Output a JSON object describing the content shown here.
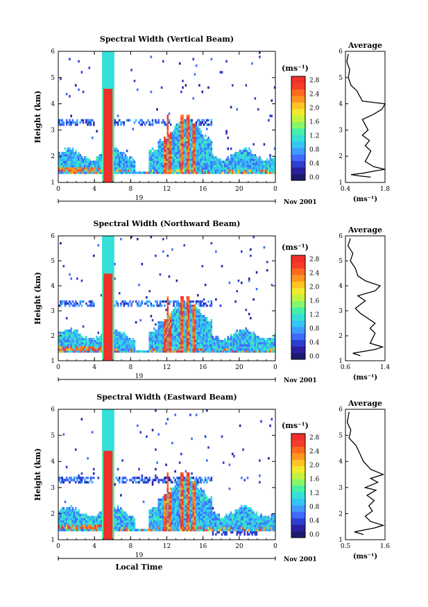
{
  "chart_data": [
    {
      "type": "heatmap",
      "title": "Spectral Width (Vertical Beam)",
      "xlabel": "",
      "ylabel": "Height (km)",
      "x_ticks": [
        "0",
        "4",
        "8",
        "12",
        "16",
        "20",
        "0"
      ],
      "xlim": [
        0,
        24
      ],
      "y_ticks": [
        "1",
        "2",
        "3",
        "4",
        "5",
        "6"
      ],
      "ylim": [
        1,
        6
      ],
      "date_label": "19",
      "date_suffix": "Nov 2001",
      "colorbar": {
        "unit": "(ms⁻¹)",
        "ticks": [
          "0.0",
          "0.4",
          "0.8",
          "1.2",
          "1.6",
          "2.0",
          "2.4",
          "2.8"
        ],
        "range": [
          0,
          3.0
        ]
      },
      "average": {
        "title": "Average",
        "xlabel": "(ms⁻¹)",
        "x_ticks": [
          "0.4",
          "1.8"
        ],
        "xlim": [
          0.4,
          1.8
        ],
        "y_ticks": [
          "1",
          "2",
          "3",
          "4",
          "5",
          "6"
        ],
        "ylim": [
          1,
          6
        ],
        "profile": [
          [
            1.3,
            1.2
          ],
          [
            0.9,
            1.25
          ],
          [
            0.6,
            1.3
          ],
          [
            1.0,
            1.35
          ],
          [
            1.5,
            1.45
          ],
          [
            1.8,
            1.5
          ],
          [
            1.4,
            1.6
          ],
          [
            1.1,
            1.8
          ],
          [
            1.2,
            2.0
          ],
          [
            1.3,
            2.2
          ],
          [
            1.1,
            2.4
          ],
          [
            1.25,
            2.6
          ],
          [
            1.0,
            2.8
          ],
          [
            1.2,
            3.0
          ],
          [
            1.1,
            3.2
          ],
          [
            1.0,
            3.4
          ],
          [
            1.4,
            3.6
          ],
          [
            1.7,
            3.8
          ],
          [
            1.8,
            4.0
          ],
          [
            1.0,
            4.1
          ],
          [
            0.9,
            4.3
          ],
          [
            0.8,
            4.5
          ],
          [
            0.6,
            4.7
          ],
          [
            0.5,
            5.0
          ],
          [
            0.55,
            5.3
          ],
          [
            0.45,
            5.6
          ],
          [
            0.5,
            5.9
          ]
        ]
      }
    },
    {
      "type": "heatmap",
      "title": "Spectral Width (Northward Beam)",
      "xlabel": "",
      "ylabel": "Height (km)",
      "x_ticks": [
        "0",
        "4",
        "8",
        "12",
        "16",
        "20",
        "0"
      ],
      "xlim": [
        0,
        24
      ],
      "y_ticks": [
        "1",
        "2",
        "3",
        "4",
        "5",
        "6"
      ],
      "ylim": [
        1,
        6
      ],
      "date_label": "19",
      "date_suffix": "Nov 2001",
      "colorbar": {
        "unit": "(ms⁻¹)",
        "ticks": [
          "0.0",
          "0.4",
          "0.8",
          "1.2",
          "1.6",
          "2.0",
          "2.4",
          "2.8"
        ],
        "range": [
          0,
          3.0
        ]
      },
      "average": {
        "title": "Average",
        "xlabel": "(ms⁻¹)",
        "x_ticks": [
          "0.6",
          "1.4"
        ],
        "xlim": [
          0.6,
          1.4
        ],
        "y_ticks": [
          "1",
          "2",
          "3",
          "4",
          "5",
          "6"
        ],
        "ylim": [
          1,
          6
        ],
        "profile": [
          [
            0.9,
            1.2
          ],
          [
            0.75,
            1.3
          ],
          [
            1.2,
            1.45
          ],
          [
            1.35,
            1.55
          ],
          [
            1.1,
            1.7
          ],
          [
            1.15,
            1.9
          ],
          [
            1.2,
            2.1
          ],
          [
            1.1,
            2.3
          ],
          [
            1.2,
            2.5
          ],
          [
            1.05,
            2.7
          ],
          [
            0.9,
            2.9
          ],
          [
            0.8,
            3.1
          ],
          [
            1.0,
            3.4
          ],
          [
            0.85,
            3.6
          ],
          [
            1.2,
            3.8
          ],
          [
            1.3,
            4.0
          ],
          [
            1.0,
            4.2
          ],
          [
            0.85,
            4.4
          ],
          [
            0.8,
            4.7
          ],
          [
            0.7,
            5.0
          ],
          [
            0.75,
            5.3
          ],
          [
            0.65,
            5.6
          ],
          [
            0.7,
            5.9
          ]
        ]
      }
    },
    {
      "type": "heatmap",
      "title": "Spectral Width (Eastward Beam)",
      "xlabel": "Local Time",
      "ylabel": "Height (km)",
      "x_ticks": [
        "0",
        "4",
        "8",
        "12",
        "16",
        "20",
        "0"
      ],
      "xlim": [
        0,
        24
      ],
      "y_ticks": [
        "1",
        "2",
        "3",
        "4",
        "5",
        "6"
      ],
      "ylim": [
        1,
        6
      ],
      "date_label": "19",
      "date_suffix": "Nov 2001",
      "colorbar": {
        "unit": "(ms⁻¹)",
        "ticks": [
          "0.0",
          "0.4",
          "0.8",
          "1.2",
          "1.6",
          "2.0",
          "2.4",
          "2.8"
        ],
        "range": [
          0,
          3.0
        ]
      },
      "average": {
        "title": "Average",
        "xlabel": "(ms⁻¹)",
        "x_ticks": [
          "0.5",
          "1.6"
        ],
        "xlim": [
          0.5,
          1.6
        ],
        "y_ticks": [
          "1",
          "2",
          "3",
          "4",
          "5",
          "6"
        ],
        "ylim": [
          1,
          6
        ],
        "profile": [
          [
            1.0,
            1.2
          ],
          [
            0.75,
            1.3
          ],
          [
            1.3,
            1.45
          ],
          [
            1.55,
            1.55
          ],
          [
            1.2,
            1.7
          ],
          [
            1.05,
            1.9
          ],
          [
            1.25,
            2.1
          ],
          [
            1.15,
            2.3
          ],
          [
            1.3,
            2.5
          ],
          [
            1.1,
            2.7
          ],
          [
            1.35,
            2.9
          ],
          [
            1.05,
            3.0
          ],
          [
            1.4,
            3.2
          ],
          [
            1.2,
            3.35
          ],
          [
            1.55,
            3.5
          ],
          [
            1.2,
            3.7
          ],
          [
            1.0,
            4.0
          ],
          [
            0.9,
            4.3
          ],
          [
            0.8,
            4.6
          ],
          [
            0.6,
            4.9
          ],
          [
            0.65,
            5.2
          ],
          [
            0.55,
            5.5
          ],
          [
            0.6,
            5.9
          ]
        ]
      }
    }
  ]
}
